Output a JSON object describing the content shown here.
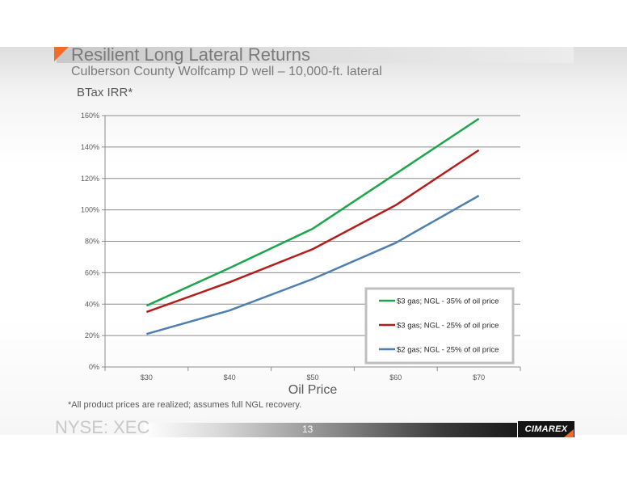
{
  "header": {
    "title": "Resilient Long Lateral Returns",
    "subtitle": "Culberson County Wolfcamp D well – 10,000-ft. lateral"
  },
  "chart_data": {
    "type": "line",
    "title": "",
    "ylabel": "BTax IRR*",
    "xlabel": "Oil Price",
    "categories": [
      "$30",
      "$40",
      "$50",
      "$60",
      "$70"
    ],
    "ylim": [
      0,
      160
    ],
    "yticks": [
      0,
      20,
      40,
      60,
      80,
      100,
      120,
      140,
      160
    ],
    "ytick_labels": [
      "0%",
      "20%",
      "40%",
      "60%",
      "80%",
      "100%",
      "120%",
      "140%",
      "160%"
    ],
    "grid": true,
    "legend_position": "bottom-right",
    "series": [
      {
        "name": "$3 gas; NGL - 35% of oil price",
        "color": "#1ca64c",
        "values": [
          39,
          63,
          88,
          123,
          158
        ]
      },
      {
        "name": "$3 gas; NGL - 25% of oil price",
        "color": "#b51c1c",
        "values": [
          35,
          54,
          75,
          103,
          138
        ]
      },
      {
        "name": "$2 gas; NGL - 25% of oil price",
        "color": "#4e7fb0",
        "values": [
          21,
          36,
          56,
          79,
          109
        ]
      }
    ]
  },
  "footnote": "*All product prices are realized; assumes full NGL recovery.",
  "footer": {
    "ticker": "NYSE: XEC",
    "page_number": "13",
    "logo_text": "CIMAREX"
  }
}
